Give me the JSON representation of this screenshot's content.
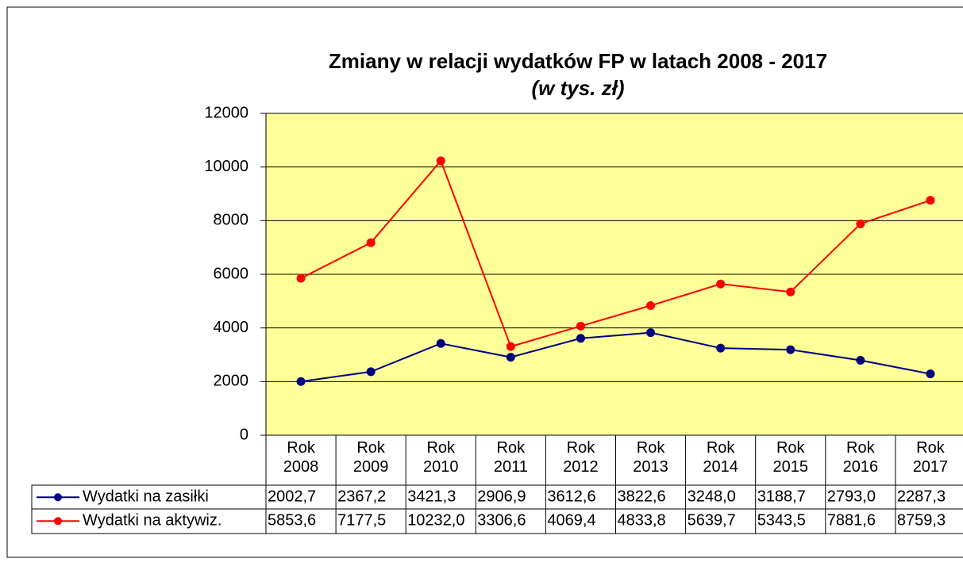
{
  "chart_data": {
    "type": "line",
    "title": "Zmiany w relacji wydatków FP w latach 2008 - 2017",
    "subtitle": "(w tys. zł)",
    "categories": [
      "Rok 2008",
      "Rok 2009",
      "Rok 2010",
      "Rok 2011",
      "Rok 2012",
      "Rok 2013",
      "Rok 2014",
      "Rok 2015",
      "Rok 2016",
      "Rok 2017"
    ],
    "series": [
      {
        "name": "Wydatki na zasiłki",
        "color": "#000080",
        "values": [
          2002.7,
          2367.2,
          3421.3,
          2906.9,
          3612.6,
          3822.6,
          3248.0,
          3188.7,
          2793.0,
          2287.3
        ],
        "value_labels": [
          "2002,7",
          "2367,2",
          "3421,3",
          "2906,9",
          "3612,6",
          "3822,6",
          "3248,0",
          "3188,7",
          "2793,0",
          "2287,3"
        ]
      },
      {
        "name": "Wydatki na aktywiz.",
        "color": "#ff0000",
        "values": [
          5853.6,
          7177.5,
          10232.0,
          3306.6,
          4069.4,
          4833.8,
          5639.7,
          5343.5,
          7881.6,
          8759.3
        ],
        "value_labels": [
          "5853,6",
          "7177,5",
          "10232,0",
          "3306,6",
          "4069,4",
          "4833,8",
          "5639,7",
          "5343,5",
          "7881,6",
          "8759,3"
        ]
      }
    ],
    "ylim": [
      0,
      12000
    ],
    "yticks": [
      0,
      2000,
      4000,
      6000,
      8000,
      10000,
      12000
    ],
    "grid": true,
    "plot_background": "#ffff99"
  }
}
